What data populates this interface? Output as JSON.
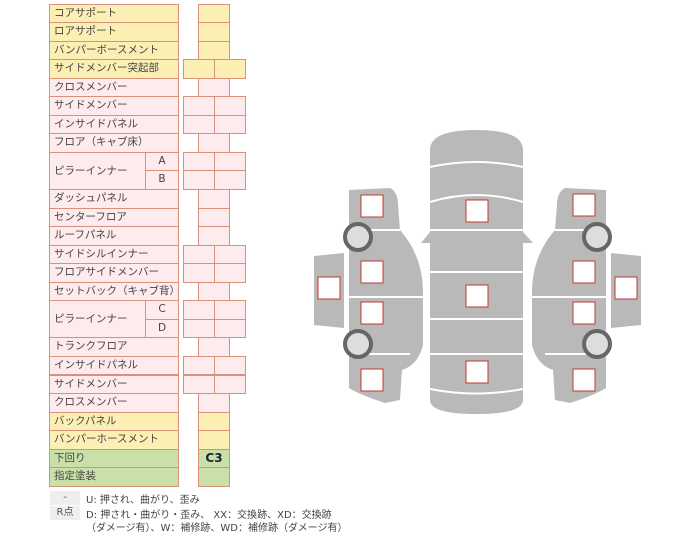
{
  "rows": [
    {
      "label": "コアサポート",
      "color": "y",
      "cells": 1
    },
    {
      "label": "ロアサポート",
      "color": "y",
      "cells": 1
    },
    {
      "label": "バンパーボースメント",
      "color": "y",
      "cells": 1
    },
    {
      "label": "サイドメンバー突起部",
      "color": "y",
      "cells": 2
    },
    {
      "label": "クロスメンバー",
      "color": "p",
      "cells": 1
    },
    {
      "label": "サイドメンバー",
      "color": "p",
      "cells": 2
    },
    {
      "label": "インサイドパネル",
      "color": "p",
      "cells": 2
    },
    {
      "label": "フロア（キャブ床）",
      "color": "p",
      "cells": 1
    },
    {
      "label": "ピラーインナー",
      "color": "p",
      "cells": 2,
      "sub": "A",
      "span": 2
    },
    {
      "label": "",
      "color": "p",
      "cells": 2,
      "sub": "B"
    },
    {
      "label": "ダッシュパネル",
      "color": "p",
      "cells": 1
    },
    {
      "label": "センターフロア",
      "color": "p",
      "cells": 1
    },
    {
      "label": "ルーフパネル",
      "color": "p",
      "cells": 1
    },
    {
      "label": "サイドシルインナー",
      "color": "p",
      "cells": 2
    },
    {
      "label": "フロアサイドメンバー",
      "color": "p",
      "cells": 2
    },
    {
      "label": "セットバック（キャブ背）",
      "color": "p",
      "cells": 1
    },
    {
      "label": "ピラーインナー",
      "color": "p",
      "cells": 2,
      "sub": "C",
      "span": 2
    },
    {
      "label": "",
      "color": "p",
      "cells": 2,
      "sub": "D"
    },
    {
      "label": "トランクフロア",
      "color": "p",
      "cells": 1
    },
    {
      "label": "インサイドパネル",
      "color": "p",
      "cells": 2
    },
    {
      "label": "サイドメンバー",
      "color": "p",
      "cells": 2
    },
    {
      "label": "クロスメンバー",
      "color": "p",
      "cells": 1
    },
    {
      "label": "バックパネル",
      "color": "y",
      "cells": 1
    },
    {
      "label": "バンパーホースメント",
      "color": "y",
      "cells": 1
    },
    {
      "label": "下回り",
      "color": "g",
      "cells": 1,
      "value": "C3"
    },
    {
      "label": "指定塗装",
      "color": "g",
      "cells": 1
    }
  ],
  "legend": {
    "dash": "-",
    "dash_text": "U: 押され、曲がり、歪み",
    "rpoint": "R点",
    "rpoint_text": "D: 押され・曲がり・歪み、 XX：交換跡、XD：交換跡",
    "rpoint_text2": "（ダメージ有）、W：補修跡、WD：補修跡（ダメージ有）"
  },
  "colors": {
    "border": "#d8927c",
    "yellow": "#fcefb3",
    "pink": "#fdebee",
    "green": "#c9e0a9",
    "car": "#b9b9b9",
    "marker": "#c0392b"
  }
}
